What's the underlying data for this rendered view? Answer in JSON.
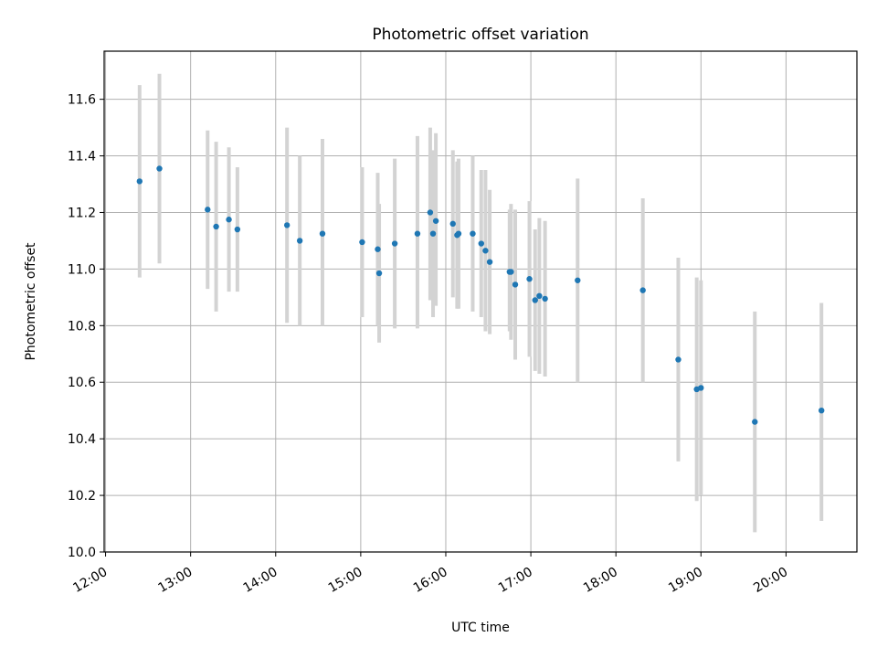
{
  "chart_data": {
    "type": "scatter",
    "title": "Photometric offset variation",
    "xlabel": "UTC time",
    "ylabel": "Photometric offset",
    "xlim": [
      "11:59",
      "20:50"
    ],
    "ylim": [
      10.0,
      11.77
    ],
    "x_ticks": [
      "12:00",
      "13:00",
      "14:00",
      "15:00",
      "16:00",
      "17:00",
      "18:00",
      "19:00",
      "20:00"
    ],
    "y_ticks": [
      10.0,
      10.2,
      10.4,
      10.6,
      10.8,
      11.0,
      11.2,
      11.4,
      11.6
    ],
    "grid": true,
    "point_color": "#1f77b4",
    "errorbar_color": "#d3d3d3",
    "series": [
      {
        "points": [
          {
            "time": "12:24",
            "y": 11.31,
            "ylow": 10.97,
            "yhigh": 11.65
          },
          {
            "time": "12:38",
            "y": 11.355,
            "ylow": 11.02,
            "yhigh": 11.69
          },
          {
            "time": "13:12",
            "y": 11.21,
            "ylow": 10.93,
            "yhigh": 11.49
          },
          {
            "time": "13:18",
            "y": 11.15,
            "ylow": 10.85,
            "yhigh": 11.45
          },
          {
            "time": "13:27",
            "y": 11.175,
            "ylow": 10.92,
            "yhigh": 11.43
          },
          {
            "time": "13:33",
            "y": 11.14,
            "ylow": 10.92,
            "yhigh": 11.36
          },
          {
            "time": "14:08",
            "y": 11.155,
            "ylow": 10.81,
            "yhigh": 11.5
          },
          {
            "time": "14:17",
            "y": 11.1,
            "ylow": 10.8,
            "yhigh": 11.4
          },
          {
            "time": "14:33",
            "y": 11.125,
            "ylow": 10.8,
            "yhigh": 11.46
          },
          {
            "time": "15:01",
            "y": 11.095,
            "ylow": 10.83,
            "yhigh": 11.36
          },
          {
            "time": "15:12",
            "y": 11.07,
            "ylow": 10.8,
            "yhigh": 11.34
          },
          {
            "time": "15:13",
            "y": 10.985,
            "ylow": 10.74,
            "yhigh": 11.23
          },
          {
            "time": "15:24",
            "y": 11.09,
            "ylow": 10.79,
            "yhigh": 11.39
          },
          {
            "time": "15:40",
            "y": 11.125,
            "ylow": 10.79,
            "yhigh": 11.47
          },
          {
            "time": "15:49",
            "y": 11.2,
            "ylow": 10.89,
            "yhigh": 11.5
          },
          {
            "time": "15:51",
            "y": 11.125,
            "ylow": 10.83,
            "yhigh": 11.42
          },
          {
            "time": "15:53",
            "y": 11.17,
            "ylow": 10.87,
            "yhigh": 11.48
          },
          {
            "time": "16:05",
            "y": 11.16,
            "ylow": 10.9,
            "yhigh": 11.42
          },
          {
            "time": "16:08",
            "y": 11.12,
            "ylow": 10.86,
            "yhigh": 11.38
          },
          {
            "time": "16:09",
            "y": 11.125,
            "ylow": 10.86,
            "yhigh": 11.39
          },
          {
            "time": "16:19",
            "y": 11.125,
            "ylow": 10.85,
            "yhigh": 11.4
          },
          {
            "time": "16:25",
            "y": 11.09,
            "ylow": 10.83,
            "yhigh": 11.35
          },
          {
            "time": "16:28",
            "y": 11.065,
            "ylow": 10.78,
            "yhigh": 11.35
          },
          {
            "time": "16:31",
            "y": 11.025,
            "ylow": 10.77,
            "yhigh": 11.28
          },
          {
            "time": "16:45",
            "y": 10.99,
            "ylow": 10.78,
            "yhigh": 11.21
          },
          {
            "time": "16:46",
            "y": 10.99,
            "ylow": 10.75,
            "yhigh": 11.23
          },
          {
            "time": "16:49",
            "y": 10.945,
            "ylow": 10.68,
            "yhigh": 11.21
          },
          {
            "time": "16:59",
            "y": 10.965,
            "ylow": 10.69,
            "yhigh": 11.24
          },
          {
            "time": "17:03",
            "y": 10.89,
            "ylow": 10.64,
            "yhigh": 11.14
          },
          {
            "time": "17:06",
            "y": 10.905,
            "ylow": 10.63,
            "yhigh": 11.18
          },
          {
            "time": "17:10",
            "y": 10.895,
            "ylow": 10.62,
            "yhigh": 11.17
          },
          {
            "time": "17:33",
            "y": 10.96,
            "ylow": 10.6,
            "yhigh": 11.32
          },
          {
            "time": "18:19",
            "y": 10.925,
            "ylow": 10.6,
            "yhigh": 11.25
          },
          {
            "time": "18:44",
            "y": 10.68,
            "ylow": 10.32,
            "yhigh": 11.04
          },
          {
            "time": "18:57",
            "y": 10.575,
            "ylow": 10.18,
            "yhigh": 10.97
          },
          {
            "time": "19:00",
            "y": 10.58,
            "ylow": 10.2,
            "yhigh": 10.96
          },
          {
            "time": "19:38",
            "y": 10.46,
            "ylow": 10.07,
            "yhigh": 10.85
          },
          {
            "time": "20:25",
            "y": 10.5,
            "ylow": 10.11,
            "yhigh": 10.88
          }
        ]
      }
    ]
  }
}
